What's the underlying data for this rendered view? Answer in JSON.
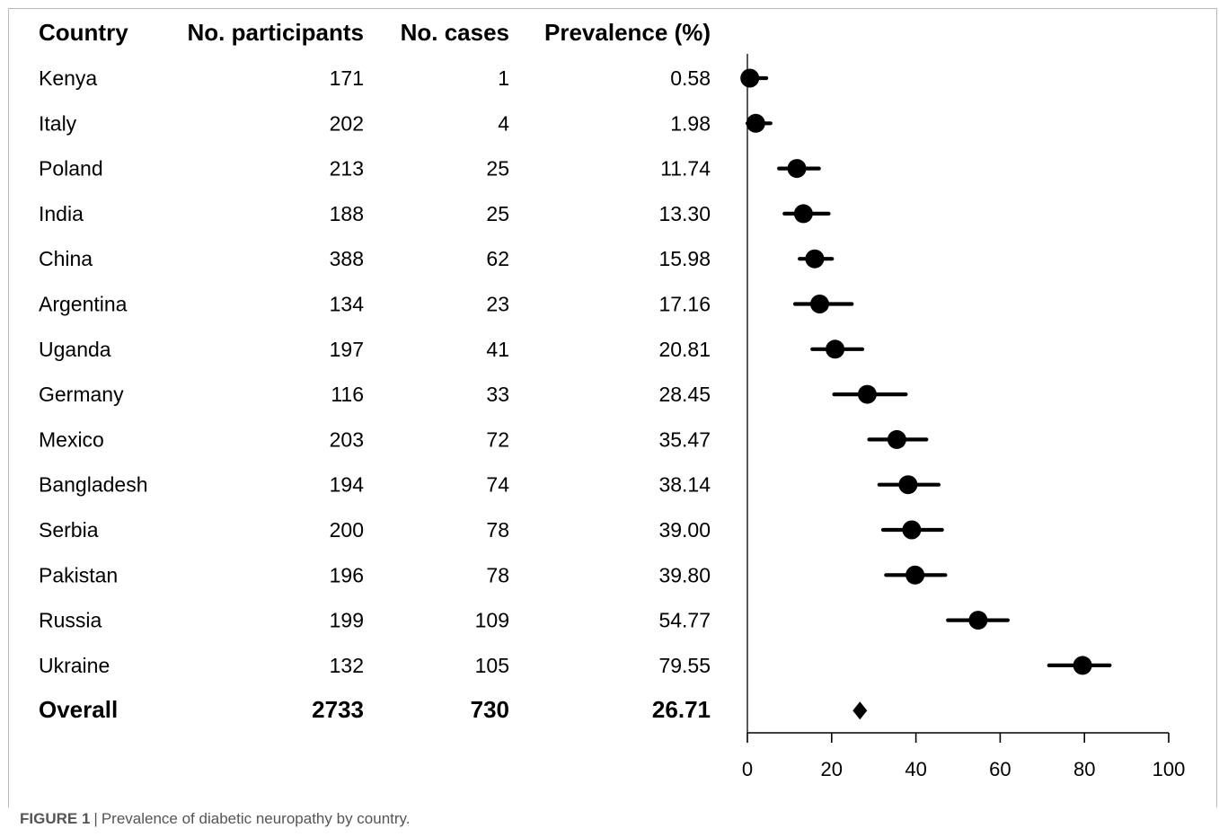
{
  "figure": {
    "caption_label": "FIGURE 1",
    "caption_separator": "|",
    "caption_text": "Prevalence of diabetic neuropathy by country."
  },
  "table": {
    "headers": [
      "Country",
      "No. participants",
      "No. cases",
      "Prevalence (%)"
    ],
    "rows": [
      {
        "country": "Kenya",
        "participants": "171",
        "cases": "1",
        "prevalence": "0.58"
      },
      {
        "country": "Italy",
        "participants": "202",
        "cases": "4",
        "prevalence": "1.98"
      },
      {
        "country": "Poland",
        "participants": "213",
        "cases": "25",
        "prevalence": "11.74"
      },
      {
        "country": "India",
        "participants": "188",
        "cases": "25",
        "prevalence": "13.30"
      },
      {
        "country": "China",
        "participants": "388",
        "cases": "62",
        "prevalence": "15.98"
      },
      {
        "country": "Argentina",
        "participants": "134",
        "cases": "23",
        "prevalence": "17.16"
      },
      {
        "country": "Uganda",
        "participants": "197",
        "cases": "41",
        "prevalence": "20.81"
      },
      {
        "country": "Germany",
        "participants": "116",
        "cases": "33",
        "prevalence": "28.45"
      },
      {
        "country": "Mexico",
        "participants": "203",
        "cases": "72",
        "prevalence": "35.47"
      },
      {
        "country": "Bangladesh",
        "participants": "194",
        "cases": "74",
        "prevalence": "38.14"
      },
      {
        "country": "Serbia",
        "participants": "200",
        "cases": "78",
        "prevalence": "39.00"
      },
      {
        "country": "Pakistan",
        "participants": "196",
        "cases": "78",
        "prevalence": "39.80"
      },
      {
        "country": "Russia",
        "participants": "199",
        "cases": "109",
        "prevalence": "54.77"
      },
      {
        "country": "Ukraine",
        "participants": "132",
        "cases": "105",
        "prevalence": "79.55"
      }
    ],
    "overall": {
      "country": "Overall",
      "participants": "2733",
      "cases": "730",
      "prevalence": "26.71"
    }
  },
  "chart_data": {
    "type": "scatter",
    "subtype": "forest-plot",
    "categories": [
      "Kenya",
      "Italy",
      "Poland",
      "India",
      "China",
      "Argentina",
      "Uganda",
      "Germany",
      "Mexico",
      "Bangladesh",
      "Serbia",
      "Pakistan",
      "Russia",
      "Ukraine"
    ],
    "points": [
      {
        "label": "Kenya",
        "x": 0.58,
        "ci_low": 0.0,
        "ci_high": 4.5
      },
      {
        "label": "Italy",
        "x": 1.98,
        "ci_low": 0.0,
        "ci_high": 5.5
      },
      {
        "label": "Poland",
        "x": 11.74,
        "ci_low": 7.5,
        "ci_high": 17.0
      },
      {
        "label": "India",
        "x": 13.3,
        "ci_low": 8.8,
        "ci_high": 19.3
      },
      {
        "label": "China",
        "x": 15.98,
        "ci_low": 12.4,
        "ci_high": 20.1
      },
      {
        "label": "Argentina",
        "x": 17.16,
        "ci_low": 11.3,
        "ci_high": 24.8
      },
      {
        "label": "Uganda",
        "x": 20.81,
        "ci_low": 15.4,
        "ci_high": 27.3
      },
      {
        "label": "Germany",
        "x": 28.45,
        "ci_low": 20.6,
        "ci_high": 37.6
      },
      {
        "label": "Mexico",
        "x": 35.47,
        "ci_low": 28.9,
        "ci_high": 42.5
      },
      {
        "label": "Bangladesh",
        "x": 38.14,
        "ci_low": 31.3,
        "ci_high": 45.4
      },
      {
        "label": "Serbia",
        "x": 39.0,
        "ci_low": 32.2,
        "ci_high": 46.2
      },
      {
        "label": "Pakistan",
        "x": 39.8,
        "ci_low": 32.9,
        "ci_high": 47.0
      },
      {
        "label": "Russia",
        "x": 54.77,
        "ci_low": 47.6,
        "ci_high": 61.8
      },
      {
        "label": "Ukraine",
        "x": 79.55,
        "ci_low": 71.6,
        "ci_high": 86.0
      }
    ],
    "overall": {
      "label": "Overall",
      "x": 26.71
    },
    "xlim": [
      0,
      100
    ],
    "xticks": [
      0,
      20,
      40,
      60,
      80,
      100
    ],
    "xlabel": "",
    "ylabel": "",
    "title": "",
    "grid": false,
    "marker_color": "#000000"
  }
}
